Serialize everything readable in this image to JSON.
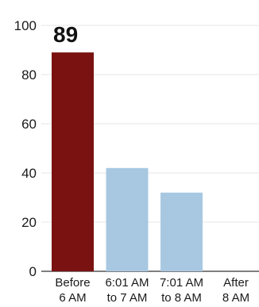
{
  "chart_data": {
    "type": "bar",
    "categories": [
      [
        "Before",
        "6 AM"
      ],
      [
        "6:01 AM",
        "to 7 AM"
      ],
      [
        "7:01 AM",
        "to 8 AM"
      ],
      [
        "After",
        "8 AM"
      ]
    ],
    "values": [
      89,
      42,
      32,
      0
    ],
    "bar_colors": [
      "#7a1212",
      "#a8c8e1",
      "#a8c8e1",
      "#a8c8e1"
    ],
    "highlight_index": 0,
    "data_labels": [
      "89",
      "",
      "",
      ""
    ],
    "yticks": [
      0,
      20,
      40,
      60,
      80,
      100
    ],
    "ylim": [
      0,
      100
    ],
    "grid": true,
    "title": "",
    "xlabel": "",
    "ylabel": ""
  }
}
